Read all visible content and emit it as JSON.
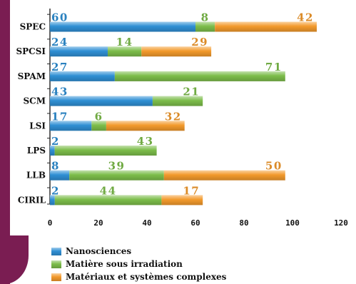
{
  "chart_data": {
    "type": "bar",
    "stacked": true,
    "orientation": "horizontal",
    "categories": [
      "SPEC",
      "SPCSI",
      "SPAM",
      "SCM",
      "LSI",
      "LPS",
      "LLB",
      "CIRIL"
    ],
    "series": [
      {
        "name": "Nanosciences",
        "color": "#2f8fd4",
        "values": [
          60,
          24,
          27,
          43,
          17,
          2,
          8,
          2
        ]
      },
      {
        "name": "Matière sous irradiation",
        "color": "#7cbd4a",
        "values": [
          8,
          14,
          71,
          21,
          6,
          43,
          39,
          44
        ]
      },
      {
        "name": "Matériaux et systèmes complexes",
        "color": "#f39a2c",
        "values": [
          42,
          29,
          0,
          0,
          32,
          0,
          50,
          17
        ]
      }
    ],
    "bar_lengths": [
      110,
      66.5,
      97,
      63,
      55.5,
      44,
      97,
      63
    ],
    "xticks": [
      0,
      20,
      40,
      60,
      80,
      100,
      120
    ],
    "xlim": [
      0,
      120
    ],
    "legend_position": "bottom-left"
  }
}
